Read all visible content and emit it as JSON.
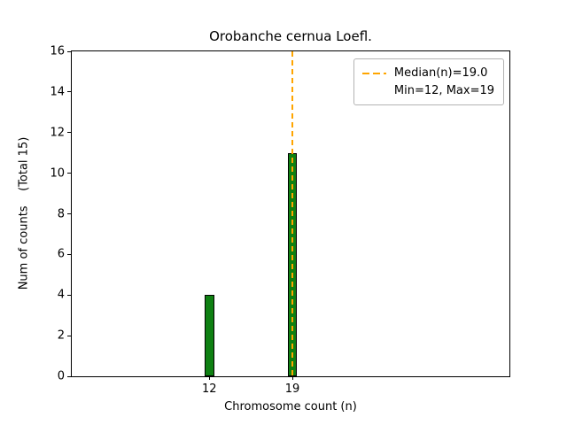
{
  "chart_data": {
    "type": "bar",
    "title": "Orobanche cernua Loefl.",
    "xlabel": "Chromosome count (n)",
    "ylabel": "Num of counts    (Total 15)",
    "categories": [
      12,
      19
    ],
    "values": [
      4,
      11
    ],
    "total_counts": 15,
    "bar_color": "#0f8012",
    "bar_edge_color": "#000000",
    "bar_width_data_units": 0.8,
    "xlim": [
      0.4,
      37.3
    ],
    "ylim": [
      0,
      16
    ],
    "xticks": [
      12,
      19
    ],
    "yticks": [
      0,
      2,
      4,
      6,
      8,
      10,
      12,
      14,
      16
    ],
    "grid": false,
    "legend_position": "upper right",
    "median_line": {
      "x": 19,
      "value_label": "19.0",
      "color": "#FFA500",
      "style": "dashed",
      "width": 2
    },
    "legend": {
      "entries": [
        {
          "marker": "orange-dashed-line",
          "label": "Median(n)=19.0"
        },
        {
          "marker": "none",
          "label": "Min=12, Max=19"
        }
      ]
    }
  }
}
